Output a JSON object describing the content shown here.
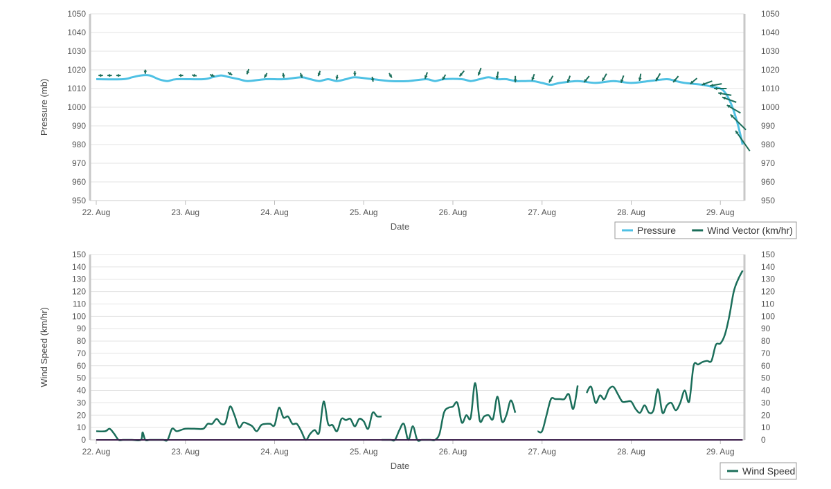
{
  "chart_data": [
    {
      "type": "line",
      "title": "",
      "xlabel": "Date",
      "ylabel": "Pressure (mb)",
      "ylim": [
        950,
        1050
      ],
      "yticks": [
        950,
        960,
        970,
        980,
        990,
        1000,
        1010,
        1020,
        1030,
        1040,
        1050
      ],
      "secondary_y": true,
      "grid": true,
      "legend_position": "bottom-right",
      "x_unit": "days since 22 Aug 00:00",
      "xlim": [
        -0.07,
        7.27
      ],
      "categories": [
        "22. Aug",
        "23. Aug",
        "24. Aug",
        "25. Aug",
        "26. Aug",
        "27. Aug",
        "28. Aug",
        "29. Aug"
      ],
      "series": [
        {
          "name": "Pressure",
          "color": "#4fc1e4",
          "x": [
            0,
            0.3,
            0.4,
            0.5,
            0.6,
            0.7,
            0.8,
            0.9,
            1.2,
            1.3,
            1.4,
            1.5,
            1.6,
            1.7,
            1.9,
            2.1,
            2.3,
            2.4,
            2.5,
            2.6,
            2.7,
            2.8,
            2.9,
            3.1,
            3.3,
            3.5,
            3.7,
            3.8,
            3.9,
            4.1,
            4.2,
            4.3,
            4.4,
            4.5,
            4.6,
            4.7,
            4.8,
            4.9,
            5.0,
            5.1,
            5.2,
            5.4,
            5.6,
            5.8,
            6.0,
            6.2,
            6.4,
            6.5,
            6.6,
            6.8,
            6.9,
            7.0,
            7.05,
            7.1,
            7.15,
            7.2,
            7.25
          ],
          "values": [
            1015,
            1015,
            1016,
            1017,
            1017,
            1015,
            1014,
            1015,
            1015,
            1016,
            1017,
            1016,
            1015,
            1014,
            1015,
            1015,
            1016,
            1015,
            1014,
            1015,
            1014,
            1015,
            1016,
            1015,
            1014,
            1014,
            1015,
            1014,
            1015,
            1015,
            1014,
            1015,
            1016,
            1015,
            1015,
            1014,
            1014,
            1014,
            1013,
            1012,
            1013,
            1014,
            1013,
            1014,
            1013,
            1014,
            1015,
            1014,
            1013,
            1012,
            1011,
            1010,
            1008,
            1004,
            998,
            990,
            980
          ]
        },
        {
          "name": "Wind Vector (km/hr)",
          "color": "#1b6e5a",
          "type": "vector",
          "x": [
            0.05,
            0.15,
            0.25,
            0.55,
            0.95,
            1.1,
            1.3,
            1.5,
            1.7,
            1.9,
            2.1,
            2.3,
            2.5,
            2.7,
            2.9,
            3.1,
            3.3,
            3.7,
            3.9,
            4.1,
            4.3,
            4.5,
            4.7,
            4.9,
            5.1,
            5.3,
            5.5,
            5.7,
            5.9,
            6.1,
            6.3,
            6.5,
            6.7,
            6.85,
            6.95,
            7.0,
            7.05,
            7.1,
            7.15,
            7.2,
            7.25
          ],
          "values": [
            1017,
            1017,
            1017,
            1019,
            1017,
            1017,
            1017,
            1018,
            1019,
            1017,
            1017,
            1017,
            1018,
            1016,
            1018,
            1015,
            1017,
            1017,
            1016,
            1018,
            1019,
            1017,
            1015,
            1016,
            1015,
            1015,
            1015,
            1016,
            1015,
            1016,
            1016,
            1015,
            1014,
            1013,
            1012,
            1010,
            1007,
            1004,
            999,
            992,
            982
          ],
          "speed": [
            7,
            7,
            7,
            5,
            7,
            8,
            9,
            10,
            13,
            12,
            9,
            11,
            14,
            10,
            9,
            10,
            12,
            22,
            18,
            25,
            30,
            28,
            20,
            22,
            28,
            25,
            30,
            32,
            28,
            25,
            35,
            30,
            35,
            50,
            55,
            60,
            65,
            75,
            80,
            120,
            140
          ],
          "direction_deg": [
            90,
            90,
            90,
            180,
            90,
            100,
            110,
            120,
            200,
            210,
            170,
            160,
            200,
            190,
            180,
            170,
            150,
            200,
            210,
            220,
            200,
            190,
            180,
            200,
            210,
            200,
            220,
            210,
            200,
            190,
            210,
            220,
            230,
            250,
            260,
            270,
            280,
            290,
            300,
            315,
            325
          ]
        }
      ]
    },
    {
      "type": "line",
      "title": "",
      "xlabel": "Date",
      "ylabel": "Wind Speed (km/hr)",
      "ylim": [
        0,
        150
      ],
      "yticks": [
        0,
        10,
        20,
        30,
        40,
        50,
        60,
        70,
        80,
        90,
        100,
        110,
        120,
        130,
        140,
        150
      ],
      "secondary_y": true,
      "grid": true,
      "legend_position": "bottom-right",
      "x_unit": "days since 22 Aug 00:00",
      "xlim": [
        -0.07,
        7.27
      ],
      "categories": [
        "22. Aug",
        "23. Aug",
        "24. Aug",
        "25. Aug",
        "26. Aug",
        "27. Aug",
        "28. Aug",
        "29. Aug"
      ],
      "series": [
        {
          "name": "Wind Speed",
          "color": "#1b6e5a",
          "segments": [
            {
              "x": [
                0,
                0.1,
                0.15,
                0.2,
                0.25,
                0.3,
                0.4,
                0.5,
                0.52,
                0.55,
                0.6,
                0.7,
                0.75,
                0.8,
                0.85,
                0.9,
                0.95,
                1.0,
                1.1,
                1.2,
                1.25,
                1.3,
                1.35,
                1.4,
                1.45,
                1.5,
                1.55,
                1.6,
                1.65,
                1.7,
                1.75,
                1.8,
                1.85,
                1.9,
                1.95,
                2.0,
                2.05,
                2.1,
                2.15,
                2.2,
                2.25,
                2.3,
                2.35,
                2.4,
                2.45,
                2.5,
                2.55,
                2.6,
                2.65,
                2.7,
                2.75,
                2.8,
                2.85,
                2.9,
                2.95,
                3.0,
                3.05,
                3.1,
                3.15,
                3.2
              ],
              "values": [
                7,
                7,
                9,
                5,
                0,
                0,
                0,
                0,
                6,
                0,
                0,
                0,
                0,
                0,
                9,
                7,
                8,
                9,
                9,
                9,
                13,
                13,
                17,
                13,
                14,
                27,
                20,
                10,
                14,
                13,
                11,
                7,
                12,
                13,
                13,
                12,
                26,
                18,
                19,
                13,
                13,
                7,
                0,
                5,
                8,
                6,
                31,
                13,
                12,
                7,
                17,
                16,
                17,
                11,
                17,
                15,
                9,
                22,
                19,
                19
              ]
            },
            {
              "x": [
                3.2,
                3.3,
                3.35,
                3.4,
                3.45,
                3.5,
                3.55,
                3.6,
                3.65,
                3.7,
                3.75,
                3.8,
                3.85,
                3.9,
                3.95,
                4.0,
                4.05,
                4.1,
                4.15,
                4.2,
                4.25,
                4.3,
                4.35,
                4.4,
                4.45,
                4.5,
                4.55,
                4.6,
                4.65,
                4.7
              ],
              "values": [
                0,
                0,
                0,
                8,
                13,
                0,
                11,
                0,
                0,
                0,
                0,
                0,
                5,
                22,
                26,
                27,
                30,
                14,
                20,
                18,
                46,
                16,
                19,
                20,
                17,
                35,
                15,
                20,
                32,
                22
              ]
            },
            {
              "x": [
                4.95,
                5.0,
                5.05,
                5.1,
                5.15,
                5.2,
                5.25,
                5.3,
                5.35,
                5.4
              ],
              "values": [
                7,
                7,
                20,
                33,
                33,
                33,
                33,
                37,
                25,
                44
              ]
            },
            {
              "x": [
                5.5,
                5.55,
                5.6,
                5.65,
                5.7,
                5.75,
                5.8,
                5.85,
                5.9,
                5.95,
                6.0,
                6.05,
                6.1,
                6.15,
                6.2,
                6.25,
                6.3,
                6.35,
                6.4,
                6.45,
                6.5,
                6.55,
                6.6,
                6.65,
                6.7,
                6.75,
                6.8,
                6.85,
                6.9,
                6.95,
                7.0,
                7.05,
                7.1,
                7.15,
                7.2,
                7.25
              ],
              "values": [
                38,
                43,
                30,
                36,
                33,
                41,
                43,
                37,
                31,
                31,
                31,
                25,
                22,
                28,
                22,
                24,
                41,
                22,
                28,
                30,
                24,
                30,
                40,
                31,
                60,
                61,
                63,
                64,
                64,
                77,
                78,
                85,
                100,
                120,
                130,
                137
              ]
            }
          ]
        },
        {
          "name": "",
          "color": "#3b1d4a",
          "x": [
            0,
            7.25
          ],
          "values": [
            0,
            0
          ]
        }
      ]
    }
  ]
}
